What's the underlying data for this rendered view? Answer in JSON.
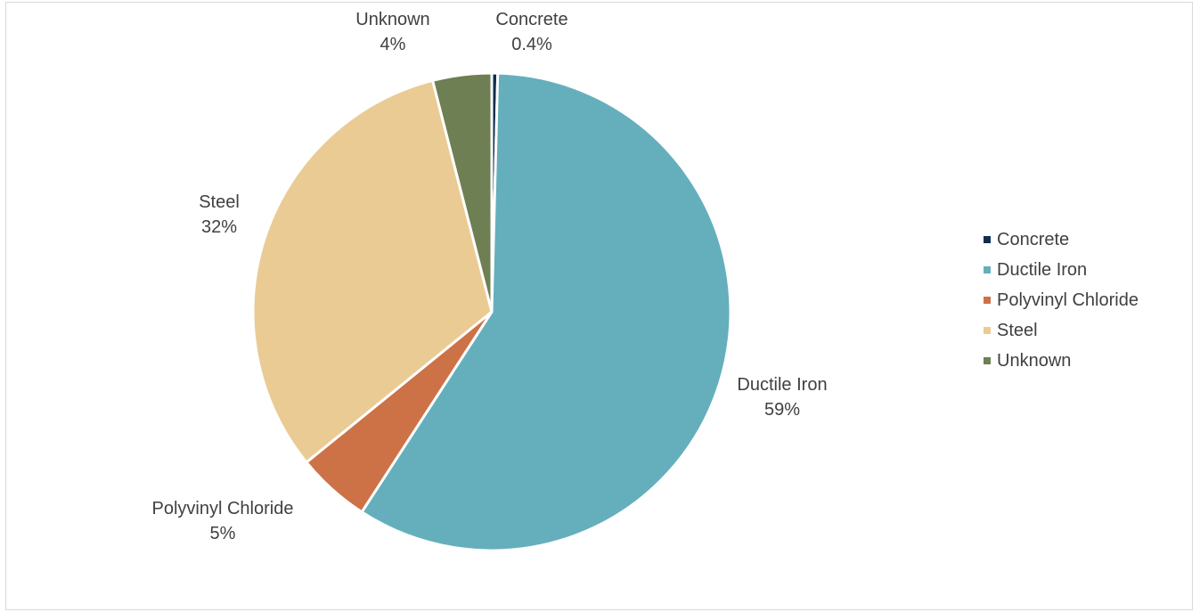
{
  "chart_data": {
    "type": "pie",
    "title": "",
    "slices": [
      {
        "name": "Concrete",
        "value": 0.4,
        "label": "0.4%",
        "color": "#0f2f52"
      },
      {
        "name": "Ductile Iron",
        "value": 59,
        "label": "59%",
        "color": "#65afbd"
      },
      {
        "name": "Polyvinyl Chloride",
        "value": 5,
        "label": "5%",
        "color": "#cd7147"
      },
      {
        "name": "Steel",
        "value": 32,
        "label": "32%",
        "color": "#eacb94"
      },
      {
        "name": "Unknown",
        "value": 4,
        "label": "4%",
        "color": "#6e7f53"
      }
    ],
    "start_angle_deg": 0,
    "direction": "clockwise",
    "legend_position": "right"
  }
}
